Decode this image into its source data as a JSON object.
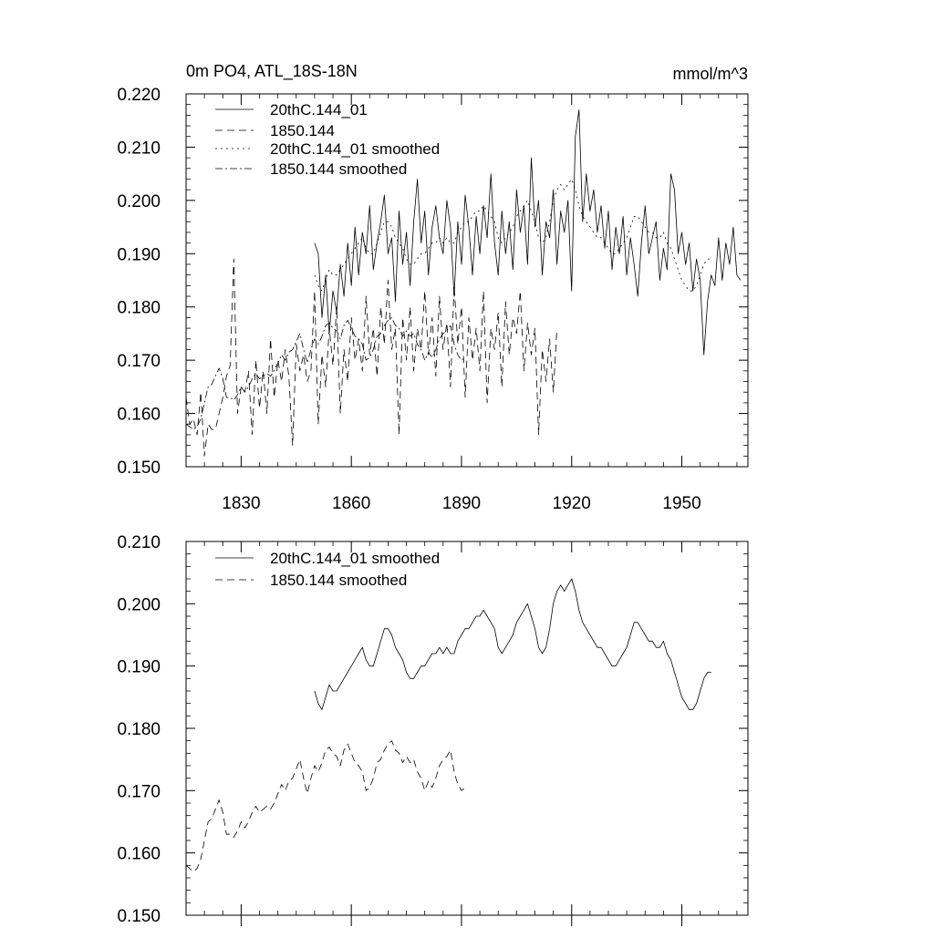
{
  "chart_data": [
    {
      "type": "line",
      "title": "0m PO4, ATL_18S-18N",
      "units": "mmol/m^3",
      "xlim": [
        1815,
        1968
      ],
      "ylim": [
        0.15,
        0.22
      ],
      "x_ticks": [
        1830,
        1860,
        1890,
        1920,
        1950
      ],
      "y_ticks": [
        "0.150",
        "0.160",
        "0.170",
        "0.180",
        "0.190",
        "0.200",
        "0.210",
        "0.220"
      ],
      "series": [
        {
          "name": "20thC.144_01",
          "style": "solid",
          "x_start": 1850,
          "values": [
            0.192,
            0.19,
            0.178,
            0.186,
            0.175,
            0.183,
            0.179,
            0.188,
            0.182,
            0.192,
            0.184,
            0.195,
            0.186,
            0.194,
            0.19,
            0.199,
            0.187,
            0.192,
            0.196,
            0.201,
            0.19,
            0.193,
            0.181,
            0.198,
            0.188,
            0.194,
            0.184,
            0.196,
            0.204,
            0.192,
            0.198,
            0.186,
            0.195,
            0.199,
            0.193,
            0.19,
            0.2,
            0.195,
            0.182,
            0.196,
            0.188,
            0.201,
            0.195,
            0.186,
            0.197,
            0.19,
            0.199,
            0.193,
            0.205,
            0.192,
            0.186,
            0.198,
            0.19,
            0.196,
            0.187,
            0.202,
            0.194,
            0.199,
            0.188,
            0.208,
            0.195,
            0.2,
            0.186,
            0.196,
            0.193,
            0.202,
            0.188,
            0.198,
            0.194,
            0.2,
            0.183,
            0.212,
            0.217,
            0.196,
            0.205,
            0.198,
            0.202,
            0.194,
            0.199,
            0.191,
            0.198,
            0.187,
            0.195,
            0.19,
            0.197,
            0.186,
            0.193,
            0.188,
            0.182,
            0.192,
            0.199,
            0.19,
            0.193,
            0.196,
            0.185,
            0.191,
            0.187,
            0.205,
            0.202,
            0.19,
            0.194,
            0.188,
            0.192,
            0.183,
            0.189,
            0.185,
            0.171,
            0.181,
            0.186,
            0.184,
            0.193,
            0.185,
            0.192,
            0.188,
            0.195,
            0.186,
            0.185
          ]
        },
        {
          "name": "1850.144",
          "style": "dashed",
          "x_start": 1815,
          "values": [
            0.163,
            0.158,
            0.159,
            0.156,
            0.164,
            0.152,
            0.158,
            0.157,
            0.157,
            0.16,
            0.163,
            0.167,
            0.169,
            0.189,
            0.16,
            0.165,
            0.164,
            0.168,
            0.156,
            0.17,
            0.161,
            0.168,
            0.16,
            0.174,
            0.163,
            0.17,
            0.166,
            0.172,
            0.167,
            0.154,
            0.173,
            0.168,
            0.171,
            0.166,
            0.168,
            0.183,
            0.158,
            0.171,
            0.165,
            0.176,
            0.169,
            0.18,
            0.16,
            0.172,
            0.166,
            0.178,
            0.17,
            0.174,
            0.168,
            0.182,
            0.171,
            0.176,
            0.167,
            0.18,
            0.173,
            0.185,
            0.172,
            0.176,
            0.156,
            0.178,
            0.17,
            0.18,
            0.168,
            0.176,
            0.172,
            0.183,
            0.171,
            0.178,
            0.167,
            0.182,
            0.172,
            0.177,
            0.165,
            0.184,
            0.173,
            0.18,
            0.163,
            0.178,
            0.17,
            0.176,
            0.168,
            0.183,
            0.162,
            0.176,
            0.172,
            0.179,
            0.165,
            0.181,
            0.171,
            0.178,
            0.175,
            0.183,
            0.168,
            0.177,
            0.171,
            0.176,
            0.156,
            0.172,
            0.166,
            0.174,
            0.164,
            0.176
          ]
        },
        {
          "name": "20thC.144_01 smoothed",
          "style": "dotted",
          "x_start": 1850,
          "values": [
            0.186,
            0.184,
            0.183,
            0.185,
            0.187,
            0.186,
            0.186,
            0.187,
            0.188,
            0.189,
            0.19,
            0.191,
            0.192,
            0.193,
            0.191,
            0.19,
            0.19,
            0.192,
            0.194,
            0.196,
            0.196,
            0.195,
            0.193,
            0.192,
            0.191,
            0.189,
            0.188,
            0.188,
            0.189,
            0.19,
            0.19,
            0.191,
            0.192,
            0.192,
            0.193,
            0.192,
            0.193,
            0.192,
            0.192,
            0.194,
            0.195,
            0.196,
            0.196,
            0.197,
            0.198,
            0.198,
            0.199,
            0.198,
            0.197,
            0.196,
            0.193,
            0.192,
            0.193,
            0.194,
            0.195,
            0.197,
            0.198,
            0.199,
            0.2,
            0.198,
            0.196,
            0.193,
            0.192,
            0.193,
            0.196,
            0.2,
            0.202,
            0.203,
            0.202,
            0.203,
            0.204,
            0.202,
            0.199,
            0.197,
            0.196,
            0.195,
            0.194,
            0.193,
            0.193,
            0.192,
            0.191,
            0.19,
            0.19,
            0.191,
            0.192,
            0.193,
            0.195,
            0.197,
            0.197,
            0.196,
            0.195,
            0.194,
            0.194,
            0.193,
            0.193,
            0.194,
            0.192,
            0.191,
            0.189,
            0.187,
            0.185,
            0.184,
            0.183,
            0.183,
            0.184,
            0.186,
            0.188,
            0.189,
            0.189
          ]
        },
        {
          "name": "1850.144 smoothed",
          "style": "dashdot",
          "x_start": 1815,
          "values": [
            0.158,
            0.1575,
            0.157,
            0.1575,
            0.159,
            0.162,
            0.165,
            0.1655,
            0.167,
            0.1685,
            0.1665,
            0.163,
            0.163,
            0.1625,
            0.1635,
            0.165,
            0.164,
            0.165,
            0.1665,
            0.1675,
            0.1665,
            0.167,
            0.1675,
            0.167,
            0.168,
            0.1695,
            0.171,
            0.17,
            0.1715,
            0.172,
            0.1735,
            0.175,
            0.172,
            0.1695,
            0.172,
            0.174,
            0.173,
            0.1745,
            0.1765,
            0.177,
            0.176,
            0.1755,
            0.174,
            0.1765,
            0.1775,
            0.176,
            0.1745,
            0.174,
            0.173,
            0.17,
            0.1705,
            0.172,
            0.1745,
            0.175,
            0.1765,
            0.1775,
            0.178,
            0.1765,
            0.176,
            0.1745,
            0.1755,
            0.1745,
            0.175,
            0.173,
            0.172,
            0.17,
            0.1715,
            0.1705,
            0.172,
            0.174,
            0.175,
            0.1755,
            0.1765,
            0.173,
            0.171,
            0.17,
            0.1705
          ]
        }
      ]
    },
    {
      "type": "line",
      "xlim": [
        1815,
        1968
      ],
      "ylim": [
        0.15,
        0.21
      ],
      "y_ticks": [
        "0.150",
        "0.160",
        "0.170",
        "0.180",
        "0.190",
        "0.200",
        "0.210"
      ],
      "series": [
        {
          "name": "20thC.144_01 smoothed",
          "style": "solid",
          "source_series": 2
        },
        {
          "name": "1850.144 smoothed",
          "style": "dashed",
          "source_series": 3
        }
      ]
    }
  ]
}
